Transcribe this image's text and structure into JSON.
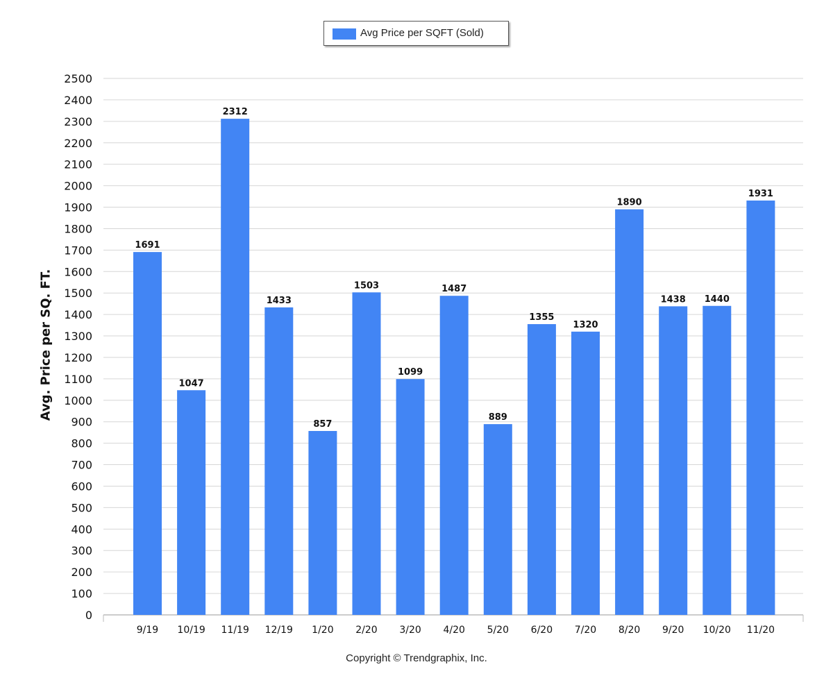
{
  "chart_data": {
    "type": "bar",
    "title": "",
    "xlabel": "",
    "ylabel": "Avg. Price per SQ. FT.",
    "categories": [
      "9/19",
      "10/19",
      "11/19",
      "12/19",
      "1/20",
      "2/20",
      "3/20",
      "4/20",
      "5/20",
      "6/20",
      "7/20",
      "8/20",
      "9/20",
      "10/20",
      "11/20"
    ],
    "series": [
      {
        "name": "Avg Price per SQFT (Sold)",
        "color": "#4285f4",
        "values": [
          1691,
          1047,
          2312,
          1433,
          857,
          1503,
          1099,
          1487,
          889,
          1355,
          1320,
          1890,
          1438,
          1440,
          1931
        ]
      }
    ],
    "ylim": [
      0,
      2500
    ],
    "yticks": [
      0,
      100,
      200,
      300,
      400,
      500,
      600,
      700,
      800,
      900,
      1000,
      1100,
      1200,
      1300,
      1400,
      1500,
      1600,
      1700,
      1800,
      1900,
      2000,
      2100,
      2200,
      2300,
      2400,
      2500
    ],
    "grid": true,
    "legend_position": "top-center"
  },
  "footer": {
    "copyright": "Copyright © Trendgraphix, Inc."
  }
}
